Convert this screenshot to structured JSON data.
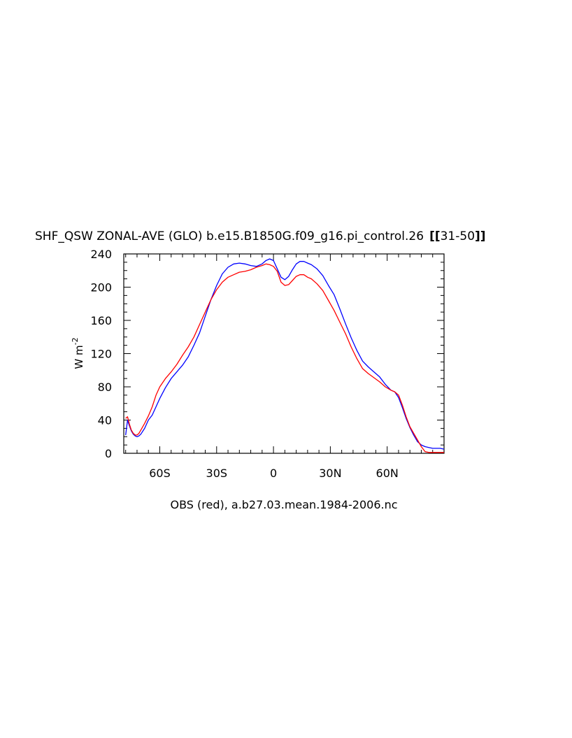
{
  "chart_data": {
    "type": "line",
    "title": "SHF_QSW ZONAL-AVE (GLO) b.e15.B1850G.f09_g16.pi_control.26",
    "title_bracket_label": "31-50",
    "ylabel_base": "W m",
    "ylabel_superscript": "-2",
    "xlabel": "OBS (red), a.b27.03.mean.1984-2006.nc",
    "xlim": [
      -79,
      90
    ],
    "ylim": [
      0,
      240
    ],
    "y_ticks": [
      0,
      40,
      80,
      120,
      160,
      200,
      240
    ],
    "x_ticks": [
      {
        "value": -60,
        "label": "60S"
      },
      {
        "value": -30,
        "label": "30S"
      },
      {
        "value": 0,
        "label": "0"
      },
      {
        "value": 30,
        "label": "30N"
      },
      {
        "value": 60,
        "label": "60N"
      }
    ],
    "grid": false,
    "series": [
      {
        "color": "#0000ff",
        "x": [
          -78,
          -77,
          -76,
          -75,
          -74,
          -73,
          -72,
          -71,
          -70,
          -68,
          -66,
          -64,
          -62,
          -60,
          -57,
          -54,
          -51,
          -48,
          -45,
          -42,
          -39,
          -36,
          -33,
          -30,
          -27,
          -24,
          -21,
          -18,
          -15,
          -12,
          -9,
          -6,
          -4,
          -2,
          0,
          2,
          4,
          6,
          8,
          10,
          12,
          14,
          16,
          18,
          20,
          23,
          26,
          29,
          32,
          35,
          38,
          41,
          44,
          47,
          50,
          53,
          56,
          59,
          62,
          64,
          66,
          68,
          70,
          72,
          74,
          76,
          78,
          80,
          82,
          84,
          86,
          88,
          90
        ],
        "y": [
          22,
          40,
          33,
          27,
          23,
          21,
          20,
          21,
          23,
          30,
          40,
          46,
          56,
          66,
          79,
          90,
          98,
          106,
          116,
          130,
          145,
          165,
          185,
          202,
          216,
          224,
          228,
          229,
          228,
          226,
          225,
          228,
          232,
          234,
          232,
          222,
          212,
          209,
          213,
          221,
          228,
          231,
          231,
          229,
          227,
          222,
          214,
          202,
          191,
          174,
          156,
          139,
          124,
          111,
          104,
          98,
          92,
          83,
          76,
          74,
          67,
          55,
          42,
          31,
          22,
          14,
          10,
          8,
          7,
          6,
          6,
          6,
          5
        ]
      },
      {
        "color": "#ff0000",
        "x": [
          -78,
          -77,
          -76,
          -75,
          -74,
          -73,
          -72,
          -71,
          -70,
          -68,
          -66,
          -64,
          -62,
          -60,
          -57,
          -54,
          -51,
          -48,
          -45,
          -42,
          -39,
          -36,
          -33,
          -30,
          -27,
          -24,
          -21,
          -18,
          -15,
          -12,
          -9,
          -6,
          -4,
          -2,
          0,
          2,
          4,
          6,
          8,
          10,
          12,
          14,
          16,
          18,
          20,
          23,
          26,
          29,
          32,
          35,
          38,
          41,
          44,
          47,
          50,
          53,
          56,
          59,
          62,
          64,
          66,
          68,
          70,
          72,
          74,
          76,
          78,
          80,
          82,
          84,
          86,
          88,
          90
        ],
        "y": [
          42,
          44,
          35,
          28,
          24,
          22,
          22,
          24,
          28,
          36,
          45,
          56,
          70,
          80,
          90,
          98,
          107,
          118,
          128,
          140,
          155,
          170,
          185,
          197,
          206,
          212,
          215,
          218,
          219,
          221,
          224,
          226,
          228,
          227,
          225,
          219,
          206,
          202,
          203,
          208,
          213,
          215,
          215,
          212,
          210,
          204,
          196,
          184,
          172,
          158,
          144,
          128,
          114,
          102,
          96,
          91,
          86,
          80,
          76,
          74,
          70,
          58,
          44,
          32,
          24,
          16,
          8,
          2,
          1,
          1,
          1,
          1,
          1
        ]
      }
    ]
  }
}
